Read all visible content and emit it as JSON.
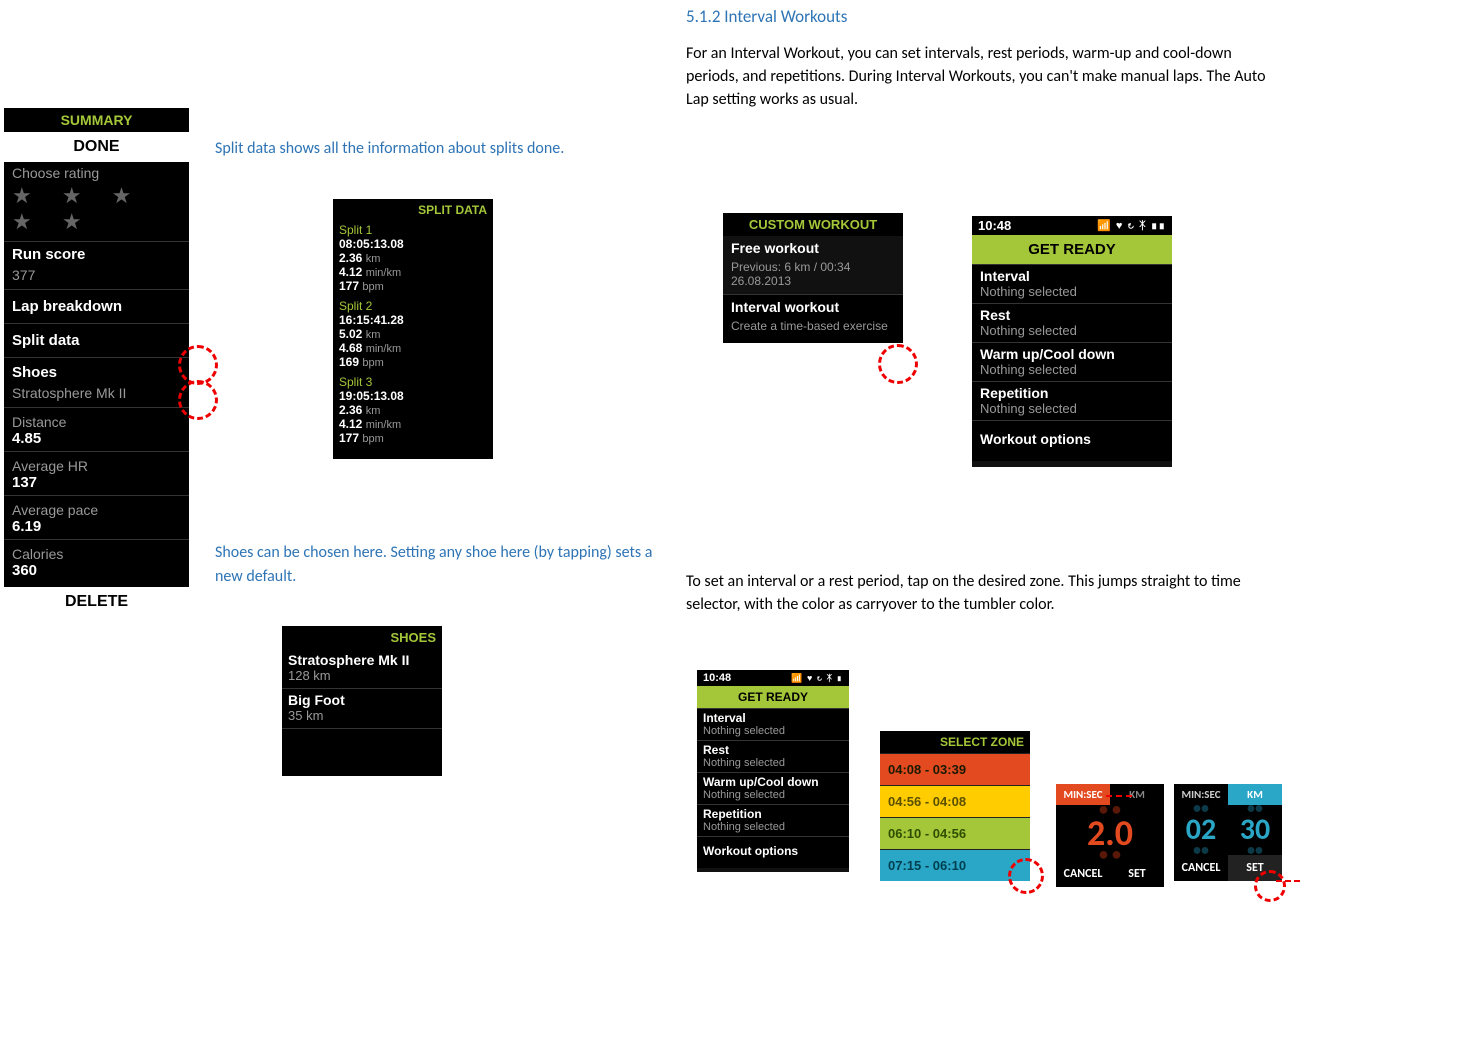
{
  "section": {
    "title": "5.1.2 Interval Workouts"
  },
  "intro": "For an Interval Workout, you can set intervals, rest periods, warm-up and cool-down periods, and repetitions. During Interval Workouts, you can't make manual laps. The Auto Lap setting works as usual.",
  "caption_split": "Split data shows all the information about splits done.",
  "caption_shoes": "Shoes can be chosen here. Setting any shoe here (by tapping) sets a new default.",
  "caption_zone": "To set an interval or a rest period, tap on the desired zone. This jumps straight to time selector, with the color as carryover to the tumbler color.",
  "summary": {
    "header": "SUMMARY",
    "done": "DONE",
    "choose_rating": "Choose rating",
    "run_score_label": "Run score",
    "run_score_value": "377",
    "lap_breakdown": "Lap breakdown",
    "split_data": "Split data",
    "shoes_label": "Shoes",
    "shoes_value": "Stratosphere Mk II",
    "distance_label": "Distance",
    "distance_value": "4.85",
    "avg_hr_label": "Average HR",
    "avg_hr_value": "137",
    "avg_pace_label": "Average pace",
    "avg_pace_value": "6.19",
    "calories_label": "Calories",
    "calories_value": "360",
    "delete": "DELETE"
  },
  "splitdata": {
    "header": "SPLIT DATA",
    "splits": [
      {
        "name": "Split 1",
        "time": "08:05:13.08",
        "dist": "2.36",
        "pace": "4.12",
        "hr": "177"
      },
      {
        "name": "Split 2",
        "time": "16:15:41.28",
        "dist": "5.02",
        "pace": "4.68",
        "hr": "169"
      },
      {
        "name": "Split 3",
        "time": "19:05:13.08",
        "dist": "2.36",
        "pace": "4.12",
        "hr": "177"
      }
    ],
    "unit_km": "km",
    "unit_minkm": "min/km",
    "unit_bpm": "bpm"
  },
  "shoes": {
    "header": "SHOES",
    "items": [
      {
        "name": "Stratosphere Mk II",
        "km": "128 km"
      },
      {
        "name": "Big Foot",
        "km": "35 km"
      }
    ]
  },
  "custom": {
    "header": "CUSTOM WORKOUT",
    "free_title": "Free workout",
    "free_prev": "Previous: 6 km / 00:34",
    "free_date": "26.08.2013",
    "interval_title": "Interval workout",
    "interval_sub": "Create a time-based exercise"
  },
  "getready_large": {
    "time": "10:48",
    "title": "GET READY",
    "items": [
      {
        "label": "Interval",
        "value": "Nothing selected"
      },
      {
        "label": "Rest",
        "value": "Nothing selected"
      },
      {
        "label": "Warm up/Cool down",
        "value": "Nothing selected"
      },
      {
        "label": "Repetition",
        "value": "Nothing selected"
      }
    ],
    "options": "Workout options"
  },
  "getready_small": {
    "time": "10:48",
    "title": "GET READY",
    "items": [
      {
        "label": "Interval",
        "value": "Nothing selected"
      },
      {
        "label": "Rest",
        "value": "Nothing selected"
      },
      {
        "label": "Warm up/Cool down",
        "value": "Nothing selected"
      },
      {
        "label": "Repetition",
        "value": "Nothing selected"
      }
    ],
    "options": "Workout options"
  },
  "selectzone": {
    "header": "SELECT ZONE",
    "rows": [
      {
        "label": "04:08 - 03:39",
        "bg": "#e44a1f",
        "fg": "#1a1a00"
      },
      {
        "label": "04:56 - 04:08",
        "bg": "#ffcc00",
        "fg": "#5a5000"
      },
      {
        "label": "06:10 - 04:56",
        "bg": "#a4c639",
        "fg": "#2f4f00"
      },
      {
        "label": "07:15 - 06:10",
        "bg": "#2aa7c6",
        "fg": "#004050"
      }
    ]
  },
  "tumbler1": {
    "tab_left": "MIN:SEC",
    "tab_right": "KM",
    "big": "2.0",
    "color": "#e44a1f",
    "tab_left_bg": "#e44a1f",
    "tab_right_bg": "#000",
    "cancel": "CANCEL",
    "set": "SET"
  },
  "tumbler2": {
    "tab_left": "MIN:SEC",
    "tab_right": "KM",
    "left_big": "02",
    "right_big": "30",
    "color": "#2aa7c6",
    "tab_left_bg": "#000",
    "tab_right_bg": "#2aa7c6",
    "cancel": "CANCEL",
    "set": "SET"
  }
}
